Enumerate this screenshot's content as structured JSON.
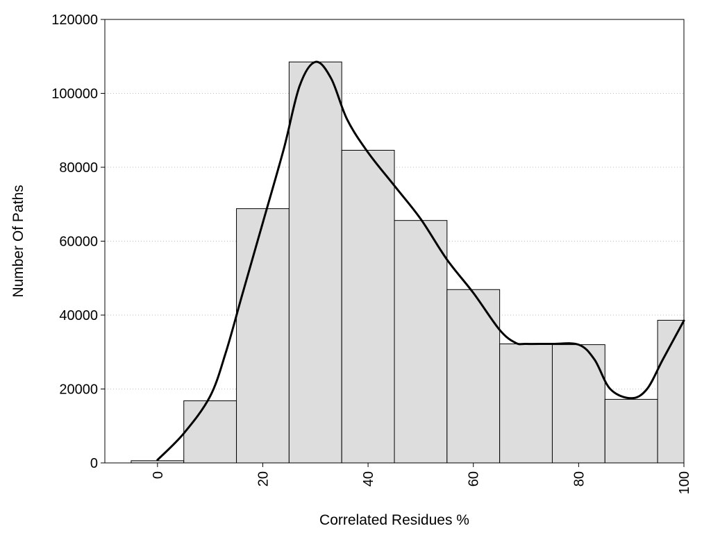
{
  "chart_data": {
    "type": "bar",
    "title": "",
    "xlabel": "Correlated Residues %",
    "ylabel": "Number Of Paths",
    "xlim": [
      -10,
      100
    ],
    "ylim": [
      0,
      120000
    ],
    "bin_width": 10,
    "x_ticks": [
      0,
      20,
      40,
      60,
      80,
      100
    ],
    "x_tick_labels": [
      "0",
      "20",
      "40",
      "60",
      "80",
      "100"
    ],
    "y_ticks": [
      0,
      20000,
      40000,
      60000,
      80000,
      100000,
      120000
    ],
    "y_tick_labels": [
      "0",
      "20000",
      "40000",
      "60000",
      "80000",
      "100000",
      "120000"
    ],
    "grid": "horizontal-dotted",
    "bar_color": "#dddddd",
    "curve_color": "#000000",
    "bars": {
      "x": [
        0,
        10,
        20,
        30,
        40,
        50,
        60,
        70,
        80,
        90,
        100
      ],
      "values": [
        600,
        16800,
        68800,
        108500,
        84600,
        65600,
        46900,
        32200,
        32000,
        17200,
        38600
      ]
    },
    "curve": {
      "x": [
        0,
        5,
        10,
        13,
        16,
        20,
        24,
        27,
        30,
        33,
        36,
        40,
        45,
        50,
        55,
        60,
        65,
        68,
        70,
        75,
        80,
        83,
        86,
        90,
        93,
        96,
        100
      ],
      "y": [
        800,
        8000,
        18000,
        30000,
        45000,
        65000,
        85000,
        102000,
        108500,
        104000,
        93000,
        84000,
        75000,
        66000,
        55000,
        46000,
        36000,
        32500,
        32200,
        32200,
        32000,
        28000,
        20000,
        17500,
        20000,
        28000,
        38500
      ]
    }
  }
}
